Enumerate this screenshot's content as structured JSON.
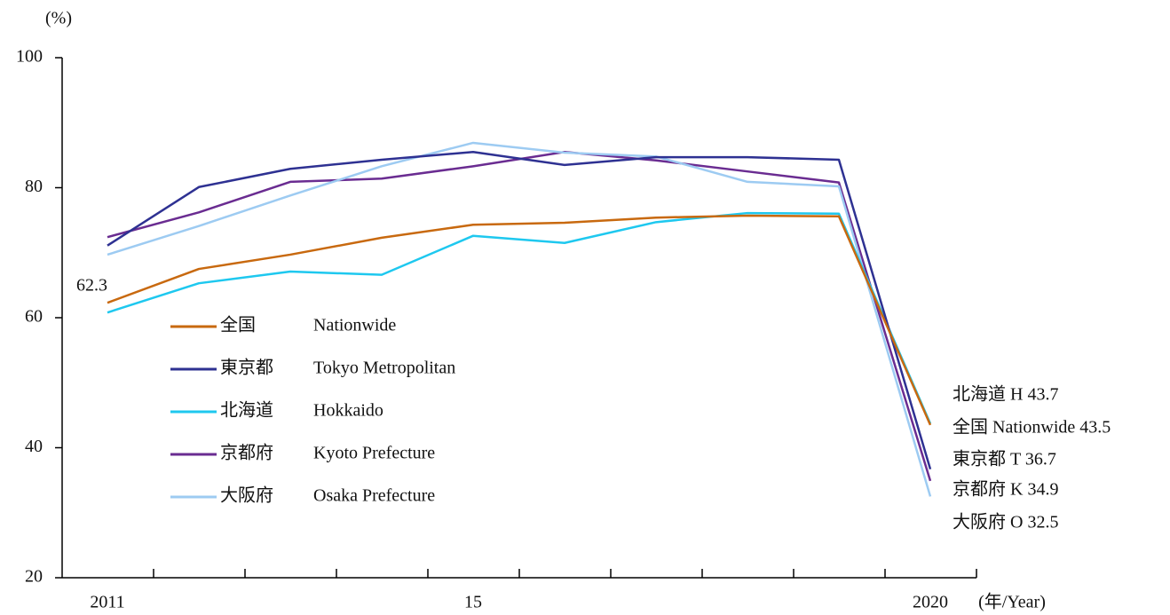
{
  "chart_data": {
    "type": "line",
    "y_label": "(%)",
    "x_label": "(年/Year)",
    "categories": [
      "2011",
      null,
      null,
      null,
      "15",
      null,
      null,
      null,
      null,
      "2020"
    ],
    "ylim": [
      20,
      100
    ],
    "yticks": [
      20,
      40,
      60,
      80,
      100
    ],
    "series": [
      {
        "name": "全国",
        "name_en": "Nationwide",
        "color": "#c8690f",
        "values": [
          62.3,
          67.5,
          69.7,
          72.3,
          74.3,
          74.6,
          75.4,
          75.7,
          75.6,
          43.5
        ],
        "value_labels": [
          "62.3",
          null,
          null,
          null,
          null,
          null,
          null,
          null,
          null,
          "全国 Nationwide 43.5"
        ]
      },
      {
        "name": "東京都",
        "name_en": "Tokyo Metropolitan",
        "color": "#2e3192",
        "values": [
          71.1,
          80.1,
          82.9,
          84.3,
          85.5,
          83.5,
          84.7,
          84.7,
          84.3,
          36.7
        ],
        "value_labels": [
          null,
          null,
          null,
          null,
          null,
          null,
          null,
          null,
          null,
          "東京都 T 36.7"
        ]
      },
      {
        "name": "北海道",
        "name_en": "Hokkaido",
        "color": "#1ec8ef",
        "values": [
          60.8,
          65.3,
          67.1,
          66.6,
          72.6,
          71.5,
          74.7,
          76.1,
          76.0,
          43.7
        ],
        "value_labels": [
          null,
          null,
          null,
          null,
          null,
          null,
          null,
          null,
          null,
          "北海道 H 43.7"
        ]
      },
      {
        "name": "京都府",
        "name_en": "Kyoto Prefecture",
        "color": "#6a2c91",
        "values": [
          72.4,
          76.2,
          80.9,
          81.4,
          83.3,
          85.5,
          84.2,
          82.5,
          80.8,
          34.9
        ],
        "value_labels": [
          null,
          null,
          null,
          null,
          null,
          null,
          null,
          null,
          null,
          "京都府 K 34.9"
        ]
      },
      {
        "name": "大阪府",
        "name_en": "Osaka Prefecture",
        "color": "#9dcbf2",
        "values": [
          69.7,
          74.1,
          78.8,
          83.3,
          86.9,
          85.4,
          84.8,
          80.9,
          80.2,
          32.5
        ],
        "value_labels": [
          null,
          null,
          null,
          null,
          null,
          null,
          null,
          null,
          null,
          "大阪府 O 32.5"
        ]
      }
    ]
  }
}
